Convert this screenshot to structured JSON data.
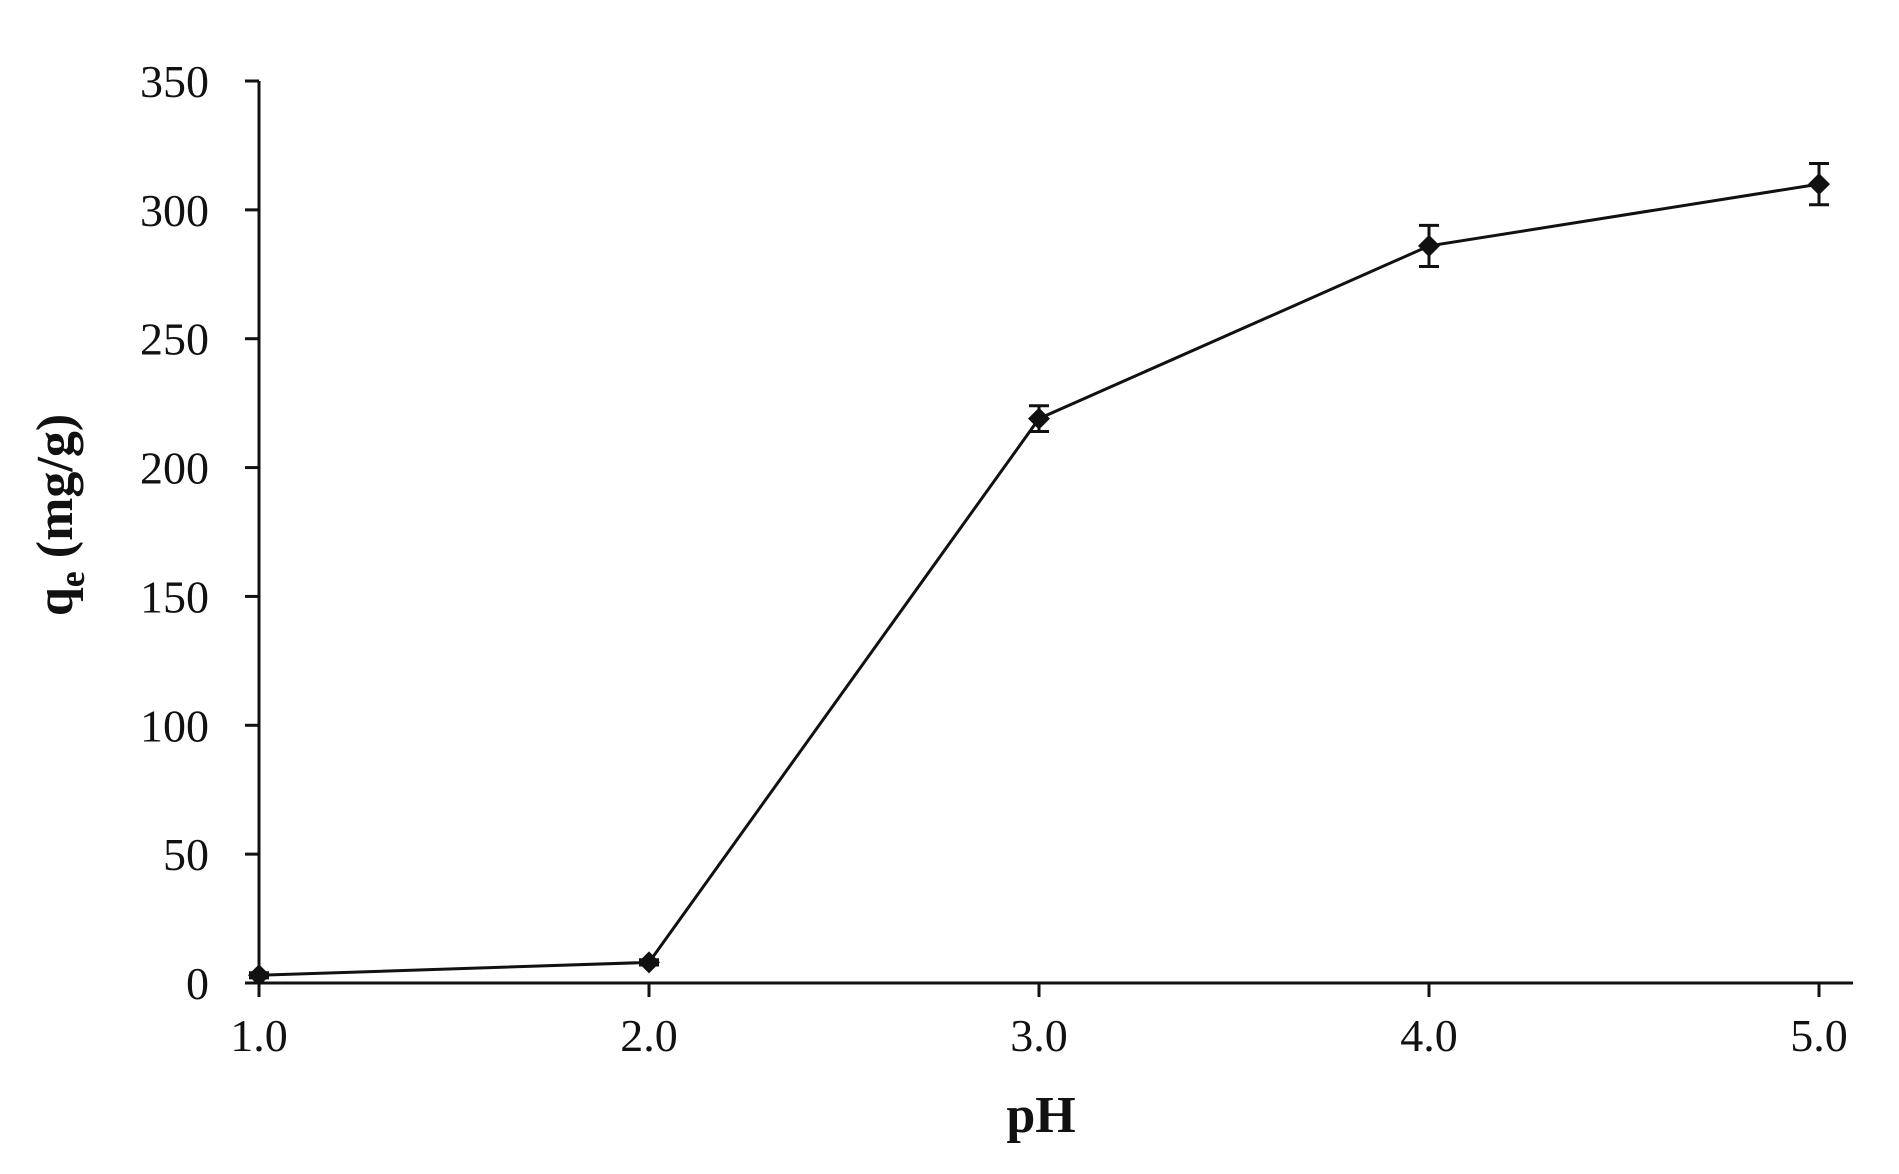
{
  "chart_data": {
    "type": "line",
    "title": "",
    "xlabel": "pH",
    "ylabel_main": "q",
    "ylabel_sub": "e",
    "ylabel_unit": " (mg/g)",
    "xlim": [
      1.0,
      5.1
    ],
    "ylim": [
      0,
      350
    ],
    "xticks": [
      1.0,
      2.0,
      3.0,
      4.0,
      5.0
    ],
    "xtick_labels": [
      "1.0",
      "2.0",
      "3.0",
      "4.0",
      "5.0"
    ],
    "yticks": [
      0,
      50,
      100,
      150,
      200,
      250,
      300,
      350
    ],
    "ytick_labels": [
      "0",
      "50",
      "100",
      "150",
      "200",
      "250",
      "300",
      "350"
    ],
    "grid": false,
    "legend": "none",
    "marker": "diamond",
    "series": [
      {
        "x": [
          1.0,
          2.0,
          3.0,
          4.0,
          5.0
        ],
        "y": [
          3,
          8,
          219,
          286,
          310
        ],
        "error": [
          1,
          1,
          5,
          8,
          8
        ]
      }
    ]
  }
}
